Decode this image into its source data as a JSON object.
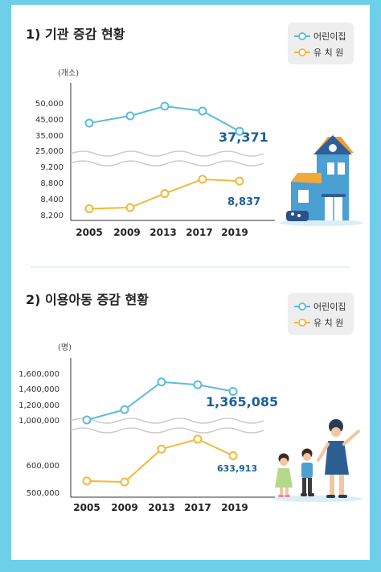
{
  "chart_data": [
    {
      "type": "line",
      "title": "1) 기관 증감 현황",
      "unit": "(개소)",
      "categories": [
        "2005",
        "2009",
        "2013",
        "2017",
        "2019"
      ],
      "y_axis_break": true,
      "ytick_labels_upper": [
        "50,000",
        "45,000",
        "35,000",
        "25,000"
      ],
      "ytick_labels_lower": [
        "9,200",
        "8,800",
        "8,400",
        "8,200"
      ],
      "series": [
        {
          "name": "어린이집",
          "color": "#5bbcd8",
          "values": [
            42517,
            46000,
            49000,
            47500,
            37371
          ],
          "label": "37,371",
          "label_color": "#1d5f99"
        },
        {
          "name": "유 치 원",
          "color": "#f0b93a",
          "values": [
            8275,
            8290,
            8529,
            8885,
            8837
          ],
          "label": "8,837",
          "label_color": "#1d5f99"
        }
      ]
    },
    {
      "type": "line",
      "title": "2) 이용아동 증감 현황",
      "unit": "(명)",
      "categories": [
        "2005",
        "2009",
        "2013",
        "2017",
        "2019"
      ],
      "y_axis_break": true,
      "ytick_labels_upper": [
        "1,600,000",
        "1,400,000",
        "1,200,000",
        "1,000,000"
      ],
      "ytick_labels_lower": [
        "600,000",
        "500,000"
      ],
      "series": [
        {
          "name": "어린이집",
          "color": "#5bbcd8",
          "values": [
            989390,
            1135502,
            1486980,
            1450243,
            1365085
          ],
          "label": "1,365,085",
          "label_color": "#1d5f99"
        },
        {
          "name": "유 치 원",
          "color": "#f0b93a",
          "values": [
            541713,
            537822,
            658188,
            694631,
            633913
          ],
          "label": "633,913",
          "label_color": "#1d5f99"
        }
      ]
    }
  ]
}
